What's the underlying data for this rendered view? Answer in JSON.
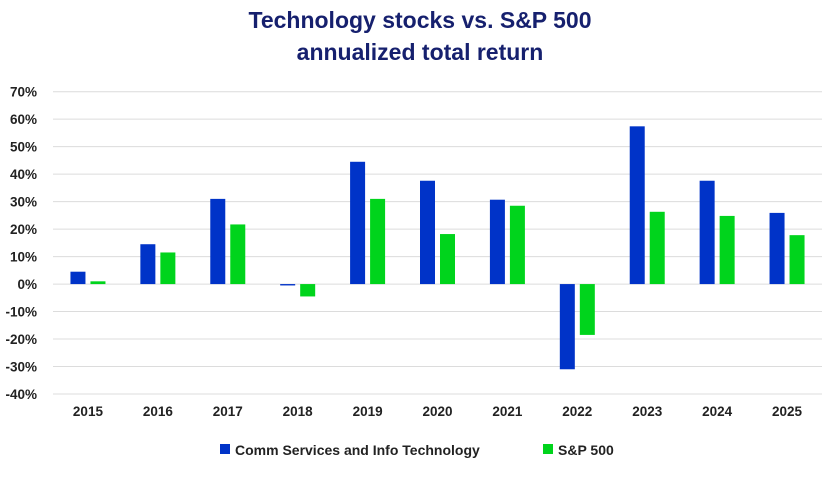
{
  "chart_data": {
    "type": "bar",
    "title": [
      "Technology stocks vs. S&P 500",
      "annualized total return"
    ],
    "xlabel": "",
    "ylabel": "",
    "categories": [
      "2015",
      "2016",
      "2017",
      "2018",
      "2019",
      "2020",
      "2021",
      "2022",
      "2023",
      "2024",
      "2025"
    ],
    "series": [
      {
        "name": "Comm Services and Info Technology",
        "color": "#0033c8",
        "values": [
          4.5,
          14.5,
          31.0,
          -0.5,
          44.5,
          37.6,
          30.7,
          -31.0,
          57.4,
          37.6,
          25.9
        ]
      },
      {
        "name": "S&P 500",
        "color": "#00d41c",
        "values": [
          1.0,
          11.5,
          21.7,
          -4.5,
          31.0,
          18.2,
          28.5,
          -18.5,
          26.3,
          24.8,
          17.8
        ]
      }
    ],
    "ylim": [
      -40,
      70
    ],
    "yticks": [
      "70%",
      "60%",
      "50%",
      "40%",
      "30%",
      "20%",
      "10%",
      "0%",
      "-10%",
      "-20%",
      "-30%",
      "-40%"
    ],
    "ytick_values": [
      70,
      60,
      50,
      40,
      30,
      20,
      10,
      0,
      -10,
      -20,
      -30,
      -40
    ],
    "grid": true,
    "legend_position": "bottom"
  }
}
